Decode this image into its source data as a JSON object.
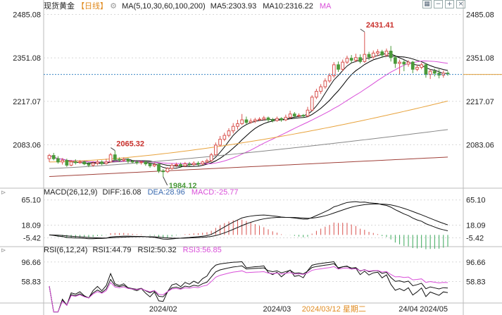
{
  "colors": {
    "up": "#d9534f",
    "down": "#4a9a3a",
    "ma5": "#111111",
    "ma10": "#000000",
    "ma30": "#d94fd9",
    "ma60": "#e8a33d",
    "ma100": "#888888",
    "ma200": "#a0413a",
    "macd_diff": "#111111",
    "macd_dea": "#111111",
    "rsi1": "#111111",
    "rsi2": "#111111",
    "rsi3": "#d94fd9",
    "last_price_line": "#3a86c4",
    "grid": "#d8d8d8"
  },
  "header": {
    "instrument": "现货黄金",
    "period": "【日线】",
    "ma_label": "MA(5,10,30,60,100,200)",
    "ma5": "MA5:2303.93",
    "ma10": "MA10:2316.22",
    "ma_more": "MA"
  },
  "macd_header": {
    "label": "MACD(26,12,9)",
    "diff": "DIFF:16.08",
    "dea": "DEA:28.96",
    "macd": "MACD:-25.77"
  },
  "rsi_header": {
    "label": "RSI(6,12,24)",
    "rsi1": "RSI1:44.79",
    "rsi2": "RSI2:50.32",
    "rsi3": "RSI3:56.85"
  },
  "toolbar": {
    "icons": [
      "grid-icon",
      "minus-icon",
      "plus-icon",
      "close-icon"
    ]
  },
  "chart_data": [
    {
      "type": "candlestick",
      "yticks": [
        "2485.08",
        "2351.08",
        "2217.07",
        "2083.06"
      ],
      "ytick_values": [
        2485.08,
        2351.08,
        2217.07,
        2083.06
      ],
      "ylim": [
        1960,
        2495
      ],
      "annotations": [
        {
          "text": "2431.41",
          "value": 2431.41,
          "index": 72
        },
        {
          "text": "2065.32",
          "value": 2065.32,
          "index": 15
        },
        {
          "text": "1984.12",
          "value": 1984.12,
          "index": 26
        }
      ],
      "last_price": 2300,
      "candles": [
        [
          2040,
          2050,
          2030,
          2055
        ],
        [
          2050,
          2040,
          2035,
          2058
        ],
        [
          2040,
          2030,
          2025,
          2048
        ],
        [
          2030,
          2035,
          2022,
          2042
        ],
        [
          2035,
          2020,
          2015,
          2040
        ],
        [
          2020,
          2030,
          2017,
          2036
        ],
        [
          2030,
          2028,
          2022,
          2038
        ],
        [
          2028,
          2030,
          2024,
          2036
        ],
        [
          2030,
          2024,
          2020,
          2034
        ],
        [
          2024,
          2020,
          2014,
          2030
        ],
        [
          2020,
          2026,
          2015,
          2032
        ],
        [
          2026,
          2030,
          2020,
          2036
        ],
        [
          2030,
          2025,
          2020,
          2035
        ],
        [
          2025,
          2030,
          2022,
          2040
        ],
        [
          2030,
          2052,
          2028,
          2058
        ],
        [
          2052,
          2038,
          2034,
          2065
        ],
        [
          2038,
          2035,
          2030,
          2044
        ],
        [
          2035,
          2038,
          2030,
          2044
        ],
        [
          2038,
          2032,
          2026,
          2042
        ],
        [
          2032,
          2030,
          2026,
          2036
        ],
        [
          2030,
          2028,
          2022,
          2036
        ],
        [
          2028,
          2030,
          2022,
          2034
        ],
        [
          2030,
          2024,
          2018,
          2034
        ],
        [
          2024,
          2018,
          2012,
          2028
        ],
        [
          2018,
          2022,
          2014,
          2028
        ],
        [
          2022,
          2002,
          1996,
          2026
        ],
        [
          2002,
          2000,
          1984,
          2008
        ],
        [
          2000,
          2010,
          1996,
          2014
        ],
        [
          2010,
          2020,
          2006,
          2026
        ],
        [
          2020,
          2022,
          2014,
          2028
        ],
        [
          2022,
          2018,
          2012,
          2028
        ],
        [
          2018,
          2024,
          2014,
          2030
        ],
        [
          2024,
          2022,
          2016,
          2030
        ],
        [
          2022,
          2026,
          2018,
          2032
        ],
        [
          2026,
          2024,
          2018,
          2032
        ],
        [
          2024,
          2030,
          2020,
          2034
        ],
        [
          2030,
          2034,
          2026,
          2040
        ],
        [
          2034,
          2052,
          2030,
          2058
        ],
        [
          2052,
          2082,
          2050,
          2090
        ],
        [
          2082,
          2100,
          2078,
          2110
        ],
        [
          2100,
          2112,
          2094,
          2120
        ],
        [
          2112,
          2126,
          2106,
          2134
        ],
        [
          2126,
          2140,
          2118,
          2150
        ],
        [
          2140,
          2148,
          2130,
          2160
        ],
        [
          2148,
          2160,
          2144,
          2178
        ],
        [
          2160,
          2152,
          2146,
          2170
        ],
        [
          2152,
          2156,
          2148,
          2164
        ],
        [
          2156,
          2160,
          2150,
          2166
        ],
        [
          2160,
          2162,
          2156,
          2168
        ],
        [
          2162,
          2166,
          2158,
          2172
        ],
        [
          2166,
          2160,
          2154,
          2170
        ],
        [
          2160,
          2158,
          2152,
          2166
        ],
        [
          2158,
          2164,
          2154,
          2170
        ],
        [
          2164,
          2160,
          2154,
          2168
        ],
        [
          2160,
          2168,
          2156,
          2176
        ],
        [
          2168,
          2178,
          2162,
          2188
        ],
        [
          2178,
          2172,
          2165,
          2184
        ],
        [
          2172,
          2174,
          2168,
          2180
        ],
        [
          2174,
          2172,
          2166,
          2178
        ],
        [
          2172,
          2190,
          2168,
          2200
        ],
        [
          2190,
          2230,
          2186,
          2236
        ],
        [
          2230,
          2248,
          2224,
          2256
        ],
        [
          2248,
          2262,
          2240,
          2270
        ],
        [
          2262,
          2280,
          2256,
          2288
        ],
        [
          2280,
          2296,
          2274,
          2304
        ],
        [
          2296,
          2330,
          2290,
          2338
        ],
        [
          2330,
          2316,
          2308,
          2340
        ],
        [
          2316,
          2338,
          2310,
          2346
        ],
        [
          2338,
          2350,
          2332,
          2358
        ],
        [
          2350,
          2344,
          2336,
          2360
        ],
        [
          2344,
          2352,
          2338,
          2364
        ],
        [
          2352,
          2340,
          2334,
          2362
        ],
        [
          2340,
          2362,
          2336,
          2431
        ],
        [
          2362,
          2354,
          2344,
          2370
        ],
        [
          2354,
          2366,
          2348,
          2374
        ],
        [
          2366,
          2370,
          2356,
          2378
        ],
        [
          2370,
          2360,
          2352,
          2376
        ],
        [
          2360,
          2372,
          2354,
          2380
        ],
        [
          2372,
          2352,
          2340,
          2388
        ],
        [
          2352,
          2334,
          2320,
          2360
        ],
        [
          2334,
          2338,
          2300,
          2346
        ],
        [
          2338,
          2332,
          2310,
          2344
        ],
        [
          2332,
          2338,
          2324,
          2344
        ],
        [
          2338,
          2316,
          2304,
          2342
        ],
        [
          2316,
          2322,
          2310,
          2330
        ],
        [
          2322,
          2330,
          2316,
          2336
        ],
        [
          2330,
          2300,
          2290,
          2334
        ],
        [
          2300,
          2310,
          2286,
          2316
        ],
        [
          2310,
          2304,
          2294,
          2318
        ],
        [
          2304,
          2298,
          2288,
          2316
        ],
        [
          2298,
          2304,
          2290,
          2312
        ],
        [
          2304,
          2302,
          2296,
          2310
        ]
      ],
      "ma30_end": 2300,
      "ma60_end": 2218,
      "ma100_end": 2130,
      "ma200_end": 2045
    },
    {
      "type": "bar",
      "name": "MACD",
      "yticks": [
        "65.10",
        "18.09",
        "-5.42"
      ],
      "ytick_values": [
        65.1,
        18.09,
        -5.42
      ],
      "ylim": [
        -14,
        70
      ],
      "diff_end": 16.08,
      "dea_end": 28.96,
      "macd_end": -25.77
    },
    {
      "type": "line",
      "name": "RSI",
      "yticks": [
        "96.66",
        "58.83"
      ],
      "ytick_values": [
        96.66,
        58.83
      ],
      "ylim": [
        20,
        110
      ],
      "rsi1_end": 44.79,
      "rsi2_end": 50.32,
      "rsi3_end": 56.85
    }
  ],
  "xaxis": {
    "labels": [
      "2024/02",
      "2024/03",
      "2024/03/12 星期二",
      "24/04",
      "2024/05"
    ],
    "label_indexes": [
      26,
      52,
      65,
      82,
      110
    ]
  }
}
